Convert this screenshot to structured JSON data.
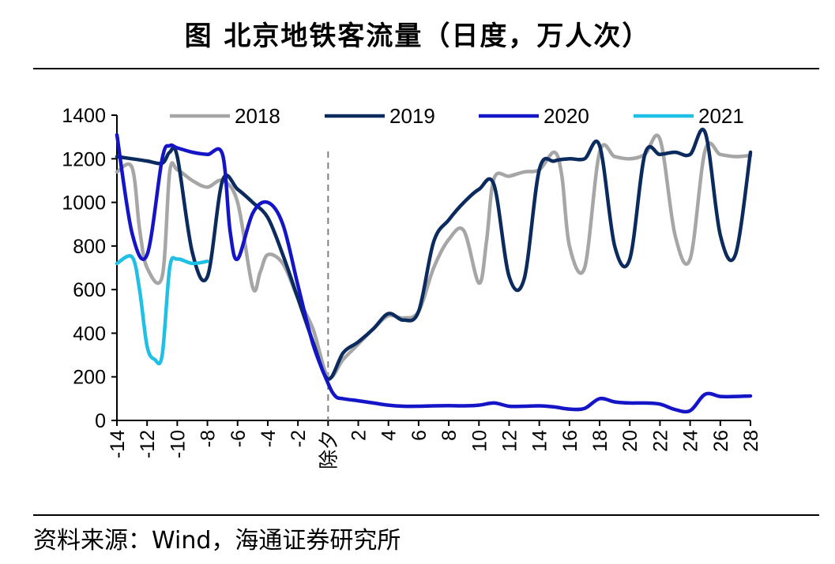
{
  "title": "图  北京地铁客流量（日度，万人次）",
  "source": "资料来源：Wind，海通证券研究所",
  "chart_data": {
    "type": "line",
    "title": "北京地铁客流量（日度，万人次）",
    "x_tick_labels": [
      "-14",
      "-12",
      "-10",
      "-8",
      "-6",
      "-4",
      "-2",
      "除夕",
      "2",
      "4",
      "6",
      "8",
      "10",
      "12",
      "14",
      "16",
      "18",
      "20",
      "22",
      "24",
      "26",
      "28"
    ],
    "x_tick_values": [
      -14,
      -12,
      -10,
      -8,
      -6,
      -4,
      -2,
      0,
      2,
      4,
      6,
      8,
      10,
      12,
      14,
      16,
      18,
      20,
      22,
      24,
      26,
      28
    ],
    "xlim": [
      -14,
      28
    ],
    "ylim": [
      0,
      1400
    ],
    "y_ticks": [
      0,
      200,
      400,
      600,
      800,
      1000,
      1200,
      1400
    ],
    "x_marker": {
      "x": 0,
      "label": "除夕",
      "style": "dashed"
    },
    "legend": {
      "placement": "top"
    },
    "series": [
      {
        "name": "2018",
        "color": "#a6a6a6",
        "x": [
          -14,
          -13,
          -12.5,
          -12,
          -11,
          -10.5,
          -10,
          -9,
          -8,
          -7,
          -6,
          -5,
          -4.5,
          -4,
          -3,
          -2,
          -1,
          0,
          1,
          2,
          3,
          4,
          5,
          6,
          7,
          8,
          9,
          10,
          10.5,
          11,
          12,
          13,
          14,
          15,
          15.5,
          16,
          17,
          18,
          19,
          20,
          21,
          22,
          23,
          24,
          25,
          26,
          27,
          28
        ],
        "y": [
          1140,
          1160,
          880,
          700,
          660,
          1140,
          1150,
          1100,
          1070,
          1100,
          1000,
          610,
          680,
          760,
          720,
          560,
          420,
          200,
          280,
          350,
          420,
          480,
          470,
          500,
          700,
          830,
          870,
          630,
          820,
          1110,
          1120,
          1140,
          1150,
          1230,
          1120,
          800,
          700,
          1230,
          1210,
          1200,
          1220,
          1290,
          850,
          740,
          1240,
          1220,
          1210,
          1215
        ]
      },
      {
        "name": "2019",
        "color": "#0b2a5e",
        "x": [
          -14,
          -13,
          -12,
          -11,
          -10.5,
          -10,
          -9,
          -8,
          -7,
          -6,
          -5,
          -4,
          -3,
          -2,
          -1,
          0,
          1,
          2,
          3,
          4,
          5,
          6,
          7,
          8,
          9,
          10,
          11,
          12,
          13,
          14,
          15,
          16,
          17,
          18,
          19,
          20,
          21,
          22,
          23,
          24,
          25,
          26,
          27,
          28
        ],
        "y": [
          1210,
          1200,
          1190,
          1180,
          1230,
          1210,
          770,
          660,
          1100,
          1060,
          1000,
          930,
          760,
          560,
          360,
          190,
          310,
          360,
          420,
          490,
          460,
          500,
          820,
          920,
          1000,
          1060,
          1080,
          660,
          650,
          1150,
          1190,
          1200,
          1200,
          1260,
          800,
          740,
          1220,
          1220,
          1230,
          1220,
          1320,
          850,
          760,
          1230
        ]
      },
      {
        "name": "2020",
        "color": "#1515c8",
        "x": [
          -14,
          -13,
          -12,
          -11,
          -10.5,
          -10,
          -9,
          -8,
          -7,
          -6.5,
          -6,
          -5,
          -4,
          -3,
          -2,
          -1,
          0,
          0.5,
          1,
          2,
          3,
          4,
          5,
          6,
          7,
          8,
          9,
          10,
          11,
          12,
          13,
          14,
          15,
          16,
          17,
          18,
          19,
          20,
          21,
          22,
          23,
          24,
          25,
          26,
          27,
          28
        ],
        "y": [
          1310,
          860,
          760,
          1200,
          1260,
          1250,
          1230,
          1220,
          1220,
          870,
          740,
          950,
          1000,
          900,
          620,
          350,
          170,
          110,
          100,
          90,
          80,
          70,
          65,
          65,
          67,
          68,
          67,
          70,
          80,
          65,
          65,
          67,
          62,
          52,
          55,
          100,
          85,
          80,
          80,
          75,
          50,
          45,
          120,
          110,
          110,
          112
        ]
      },
      {
        "name": "2021",
        "color": "#1fbfe6",
        "x": [
          -14,
          -13,
          -12.5,
          -12,
          -11.5,
          -11,
          -10.5,
          -10,
          -9,
          -8
        ],
        "y": [
          720,
          750,
          600,
          340,
          280,
          300,
          700,
          740,
          720,
          730
        ]
      }
    ]
  }
}
